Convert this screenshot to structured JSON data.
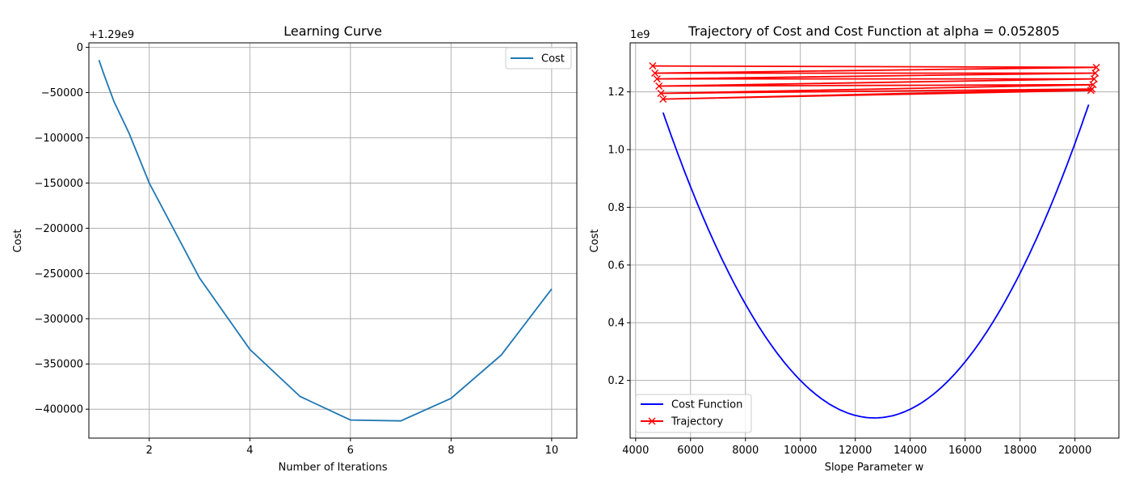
{
  "chart_data": [
    {
      "type": "line",
      "title": "Learning Curve",
      "xlabel": "Number of Iterations",
      "ylabel": "Cost",
      "offset_text": "+1.29e9",
      "xlim": [
        0.8,
        10.5
      ],
      "ylim": [
        -432000,
        5000
      ],
      "xticks": [
        2,
        4,
        6,
        8,
        10
      ],
      "yticks": [
        0,
        -50000,
        -100000,
        -150000,
        -200000,
        -250000,
        -300000,
        -350000,
        -400000
      ],
      "yticklabels": [
        "0",
        "−50000",
        "−100000",
        "−150000",
        "−200000",
        "−250000",
        "−300000",
        "−350000",
        "−400000"
      ],
      "grid": true,
      "legend_position": "top-right",
      "series": [
        {
          "name": "Cost",
          "color": "#1f77b4",
          "x": [
            1,
            1.1,
            1.3,
            1.6,
            2,
            3,
            4,
            5,
            6,
            7,
            8,
            9,
            10
          ],
          "y": [
            -14000,
            -30000,
            -60000,
            -95000,
            -150000,
            -255000,
            -334000,
            -386000,
            -412000,
            -413000,
            -388000,
            -340000,
            -267000
          ]
        }
      ]
    },
    {
      "type": "line",
      "title": "Trajectory of Cost and Cost Function at alpha = 0.052805",
      "xlabel": "Slope Parameter w",
      "ylabel": "Cost",
      "offset_text": "1e9",
      "xlim": [
        3800,
        21600
      ],
      "ylim": [
        0.0,
        1.37
      ],
      "xticks": [
        4000,
        6000,
        8000,
        10000,
        12000,
        14000,
        16000,
        18000,
        20000
      ],
      "yticks": [
        0.2,
        0.4,
        0.6,
        0.8,
        1.0,
        1.2
      ],
      "yticklabels": [
        "0.2",
        "0.4",
        "0.6",
        "0.8",
        "1.0",
        "1.2"
      ],
      "grid": true,
      "legend_position": "bottom-left",
      "series": [
        {
          "name": "Cost Function",
          "color": "#0000ff",
          "marker": "none",
          "curve": "parabola",
          "vertex": [
            12700,
            0.07
          ],
          "curvature": 1.785e-08,
          "x_range": [
            5000,
            20500
          ]
        },
        {
          "name": "Trajectory",
          "color": "#ff0000",
          "marker": "x",
          "x": [
            4620,
            20780,
            4700,
            20740,
            4780,
            20700,
            4850,
            20660,
            4920,
            20620,
            5000,
            20580
          ],
          "y": [
            1.29,
            1.285,
            1.265,
            1.265,
            1.245,
            1.245,
            1.22,
            1.225,
            1.195,
            1.21,
            1.175,
            1.205
          ]
        }
      ]
    }
  ]
}
